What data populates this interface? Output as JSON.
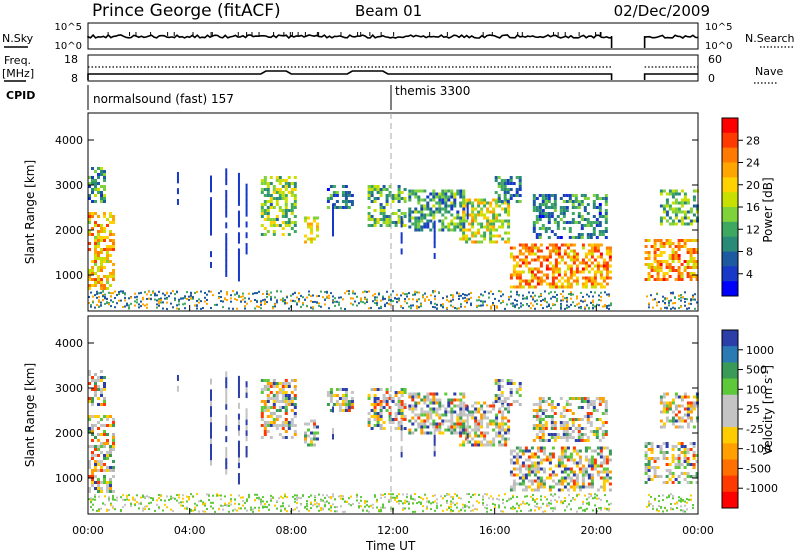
{
  "header": {
    "station": "Prince George (fitACF)",
    "beam": "Beam 01",
    "date": "02/Dec/2009"
  },
  "aux_panels": {
    "sky_label": "N.Sky",
    "search_label": "N.Search",
    "sky_ticks": [
      "10^5",
      "10^0"
    ],
    "search_ticks": [
      "10^5",
      "10^0"
    ],
    "freq_label": "Freq.",
    "freq_unit": "[MHz]",
    "freq_ticks": [
      "18",
      "8"
    ],
    "nave_label": "Nave",
    "nave_ticks": [
      "60",
      "0"
    ],
    "cpid_label": "CPID",
    "cpid_segments": [
      {
        "label": "normalsound (fast) 157",
        "start_hour": 0
      },
      {
        "label": "themis 3300",
        "start_hour": 12
      }
    ]
  },
  "colorbars": {
    "power": {
      "title": "Power [dB]",
      "ticks": [
        "28",
        "24",
        "20",
        "16",
        "12",
        "8",
        "4"
      ],
      "colors": [
        "#ff0000",
        "#ff3a00",
        "#ff7a00",
        "#ffa500",
        "#ffd200",
        "#c8e000",
        "#7fd23a",
        "#3fa860",
        "#2a8a78",
        "#1e5aa0",
        "#1838c8",
        "#0000ff"
      ]
    },
    "velocity": {
      "title": "Velocity [m s",
      "title_sup": "-1",
      "title_end": "]",
      "ticks": [
        "1000",
        "500",
        "100",
        "25",
        "-25",
        "-100",
        "-500",
        "-1000"
      ],
      "colors": [
        "#2c3ea8",
        "#2a7ab4",
        "#3a9a58",
        "#5cc83a",
        "#c4c4c4",
        "#c4c4c4",
        "#ffcc00",
        "#ffa000",
        "#ff7000",
        "#ff3a00",
        "#ff0000"
      ]
    }
  },
  "chart_data": [
    {
      "type": "heatmap",
      "panel": "power",
      "ylabel": "Slant Range [km]",
      "ylim": [
        200,
        4600
      ],
      "yticks": [
        "4000",
        "3000",
        "2000",
        "1000"
      ],
      "xlim_hours": [
        0,
        24
      ],
      "xticks": [
        "00:00",
        "04:00",
        "08:00",
        "12:00",
        "16:00",
        "20:00",
        "00:00"
      ],
      "data_gaps_hours": [
        [
          20.6,
          21.9
        ]
      ],
      "echo_regions": [
        {
          "t0": 0.0,
          "t1": 1.0,
          "r0": 700,
          "r1": 2400,
          "level_db": 22
        },
        {
          "t0": 0.0,
          "t1": 0.6,
          "r0": 2600,
          "r1": 3400,
          "level_db": 10
        },
        {
          "t0": 6.8,
          "t1": 8.2,
          "r0": 1900,
          "r1": 3200,
          "level_db": 14
        },
        {
          "t0": 8.5,
          "t1": 9.0,
          "r0": 1700,
          "r1": 2300,
          "level_db": 18
        },
        {
          "t0": 9.4,
          "t1": 10.4,
          "r0": 2500,
          "r1": 3000,
          "level_db": 8
        },
        {
          "t0": 11.0,
          "t1": 12.5,
          "r0": 2100,
          "r1": 3000,
          "level_db": 12
        },
        {
          "t0": 12.6,
          "t1": 14.8,
          "r0": 2000,
          "r1": 2900,
          "level_db": 10
        },
        {
          "t0": 14.6,
          "t1": 16.6,
          "r0": 1700,
          "r1": 2700,
          "level_db": 18
        },
        {
          "t0": 16.0,
          "t1": 17.0,
          "r0": 2600,
          "r1": 3200,
          "level_db": 8
        },
        {
          "t0": 16.6,
          "t1": 20.6,
          "r0": 700,
          "r1": 1700,
          "level_db": 24
        },
        {
          "t0": 17.5,
          "t1": 20.4,
          "r0": 1800,
          "r1": 2800,
          "level_db": 8
        },
        {
          "t0": 21.9,
          "t1": 24.0,
          "r0": 900,
          "r1": 1800,
          "level_db": 24
        },
        {
          "t0": 22.5,
          "t1": 24.0,
          "r0": 2100,
          "r1": 2900,
          "level_db": 12
        }
      ]
    },
    {
      "type": "heatmap",
      "panel": "velocity",
      "xlabel": "Time UT",
      "ylabel": "Slant Range [km]",
      "ylim": [
        200,
        4600
      ],
      "yticks": [
        "4000",
        "3000",
        "2000",
        "1000"
      ],
      "xlim_hours": [
        0,
        24
      ],
      "xticks": [
        "00:00",
        "04:00",
        "08:00",
        "12:00",
        "16:00",
        "20:00",
        "00:00"
      ],
      "data_gaps_hours": [
        [
          20.6,
          21.9
        ]
      ],
      "dominant_velocity_bin": "25 to -25"
    }
  ]
}
